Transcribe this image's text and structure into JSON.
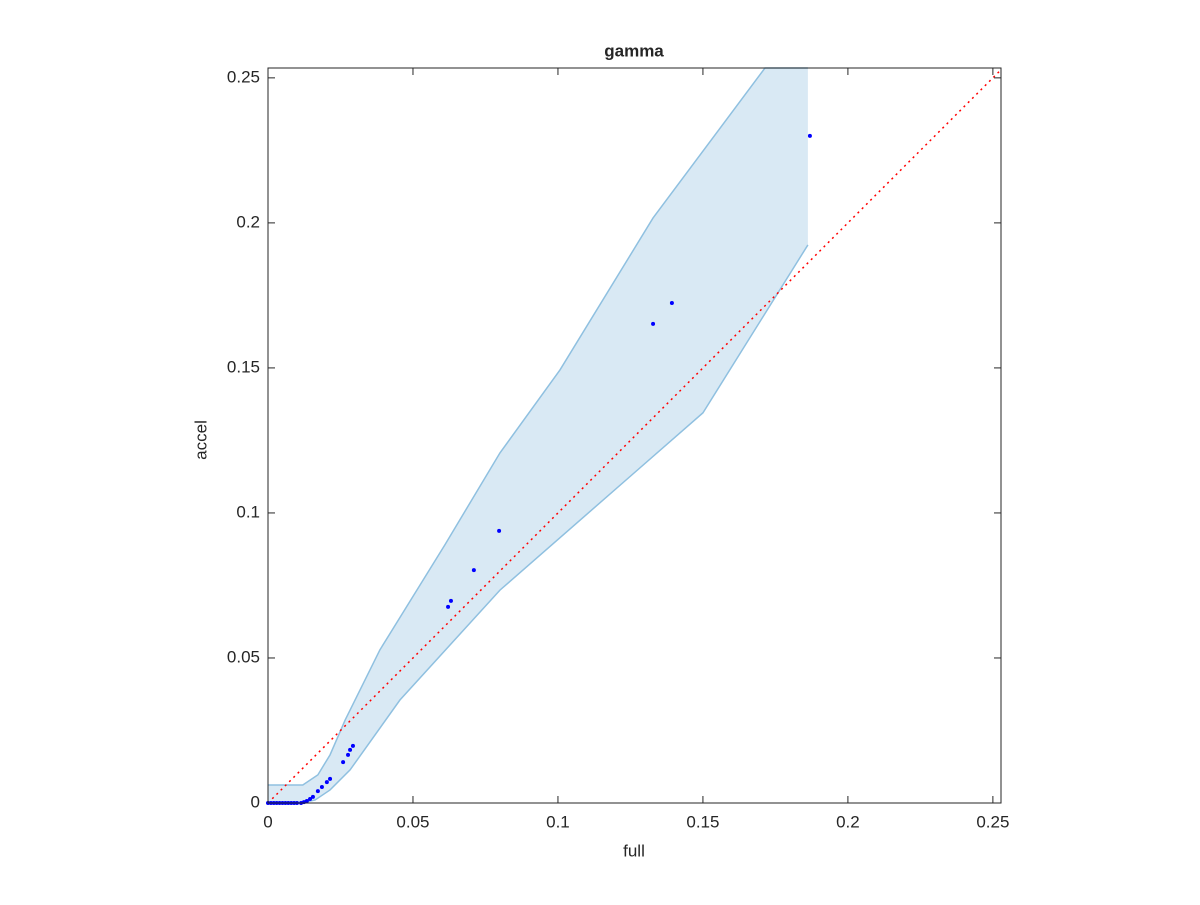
{
  "chart_data": {
    "type": "scatter",
    "title": "gamma",
    "x_label": "full",
    "y_label": "accel",
    "xlim": [
      0,
      0.2528
    ],
    "ylim": [
      0,
      0.2534
    ],
    "xticks": [
      0,
      0.05,
      0.1,
      0.15,
      0.2,
      0.25
    ],
    "yticks": [
      0,
      0.05,
      0.1,
      0.15,
      0.2,
      0.25
    ],
    "band_color": "#d9e9f4",
    "band_edge_color": "#8fc0e0",
    "band_upper": {
      "x": [
        0,
        0.012,
        0.0172,
        0.0214,
        0.0266,
        0.0386,
        0.061,
        0.08,
        0.1007,
        0.1328,
        0.1714,
        0.1862
      ],
      "y": [
        0.0062,
        0.0062,
        0.0097,
        0.0166,
        0.0286,
        0.0528,
        0.089,
        0.1207,
        0.1493,
        0.2017,
        0.2534,
        0.2534
      ]
    },
    "band_lower": {
      "x": [
        0,
        0.011,
        0.0162,
        0.0214,
        0.0283,
        0.0455,
        0.08,
        0.15,
        0.1862
      ],
      "y": [
        0,
        0,
        0.001,
        0.0045,
        0.0114,
        0.0355,
        0.0734,
        0.1345,
        0.1924
      ]
    },
    "diagonal_color": "#ff0000",
    "series": [
      {
        "color": "#0000ff",
        "x": [
          0,
          0.001,
          0.002,
          0.003,
          0.004,
          0.005,
          0.006,
          0.007,
          0.008,
          0.009,
          0.01,
          0.0114,
          0.0124,
          0.0134,
          0.0145,
          0.0155,
          0.0172,
          0.0186,
          0.0203,
          0.0214,
          0.0259,
          0.0276,
          0.0283,
          0.0293,
          0.0621,
          0.0631,
          0.071,
          0.0797,
          0.1328,
          0.1393,
          0.1869
        ],
        "values": [
          0,
          0,
          0,
          0,
          0,
          0,
          0,
          0,
          0,
          0,
          0,
          0,
          0.0003,
          0.0007,
          0.0014,
          0.0021,
          0.0041,
          0.0055,
          0.0072,
          0.0083,
          0.0141,
          0.0166,
          0.0183,
          0.0197,
          0.0676,
          0.0697,
          0.0803,
          0.0938,
          0.1652,
          0.1724,
          0.23
        ]
      }
    ]
  }
}
